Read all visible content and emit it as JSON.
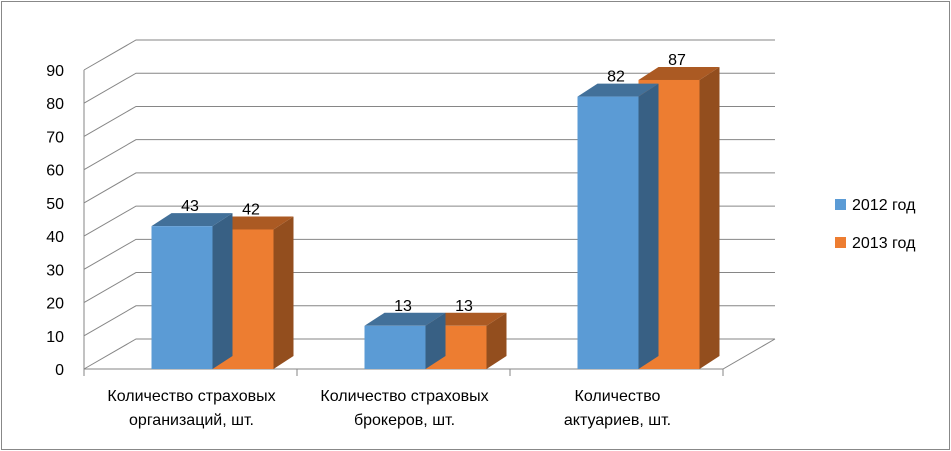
{
  "chart_data": {
    "type": "bar",
    "categories": [
      [
        "Количество страховых",
        "организаций, шт."
      ],
      [
        "Количество страховых",
        "брокеров, шт."
      ],
      [
        "Количество",
        "актуариев, шт."
      ]
    ],
    "series": [
      {
        "name": "2012 год",
        "values": [
          43,
          13,
          82
        ],
        "color": "#5B9BD5"
      },
      {
        "name": "2013 год",
        "values": [
          42,
          13,
          87
        ],
        "color": "#ED7D31"
      }
    ],
    "ylim": [
      0,
      90
    ],
    "yticks": [
      0,
      10,
      20,
      30,
      40,
      50,
      60,
      70,
      80,
      90
    ],
    "grid": true,
    "legend": "right",
    "style": "3d"
  }
}
